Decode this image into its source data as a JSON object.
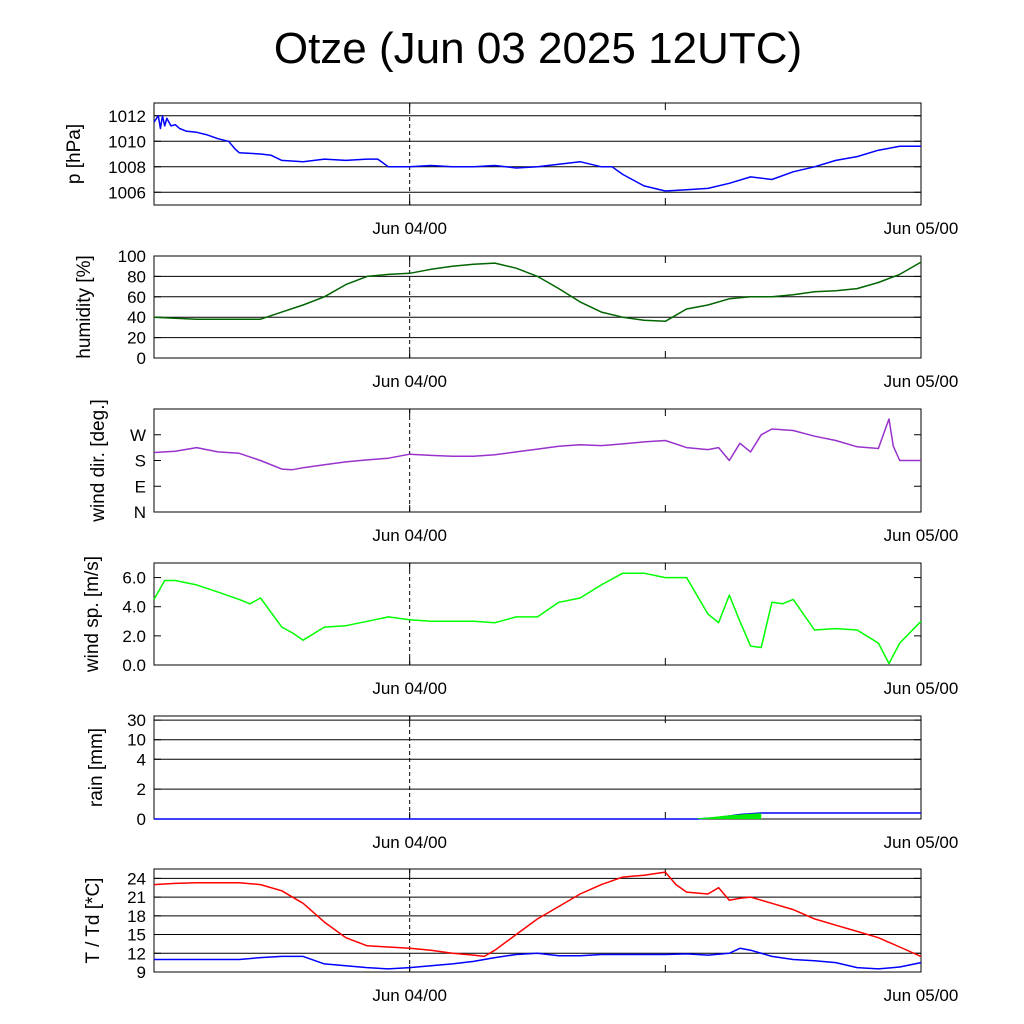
{
  "title": "Otze (Jun 03 2025 12UTC)",
  "x_tick_labels": [
    "Jun 04/00",
    "Jun 05/00"
  ],
  "chart_data": [
    {
      "type": "line",
      "ylabel": "p [hPa]",
      "ylim": [
        1005,
        1013
      ],
      "yticks": [
        {
          "v": 1006,
          "label": "1006"
        },
        {
          "v": 1008,
          "label": "1008"
        },
        {
          "v": 1010,
          "label": "1010"
        },
        {
          "v": 1012,
          "label": "1012"
        }
      ],
      "grid": true,
      "x_range_hours": [
        0,
        36
      ],
      "series": [
        {
          "color": "#0000ff",
          "x": [
            0,
            0.2,
            0.3,
            0.4,
            0.5,
            0.6,
            0.8,
            1,
            1.2,
            1.5,
            2,
            2.5,
            3,
            3.5,
            3.8,
            4,
            5,
            5.5,
            6,
            7,
            8,
            9,
            10,
            10.5,
            11,
            12,
            13,
            14,
            15,
            16,
            17,
            18,
            19,
            20,
            21,
            21.5,
            22,
            23,
            24,
            25,
            26,
            27,
            28,
            29,
            30,
            31,
            32,
            33,
            34,
            35,
            36
          ],
          "y": [
            1011.5,
            1012,
            1011,
            1012,
            1011.2,
            1011.8,
            1011.2,
            1011.3,
            1011.0,
            1010.8,
            1010.7,
            1010.5,
            1010.2,
            1010.0,
            1009.4,
            1009.1,
            1009.0,
            1008.9,
            1008.5,
            1008.4,
            1008.6,
            1008.5,
            1008.6,
            1008.6,
            1008.0,
            1008.0,
            1008.1,
            1008.0,
            1008.0,
            1008.1,
            1007.9,
            1008.0,
            1008.2,
            1008.4,
            1008.0,
            1008.0,
            1007.4,
            1006.5,
            1006.1,
            1006.2,
            1006.3,
            1006.7,
            1007.2,
            1007.0,
            1007.6,
            1008.0,
            1008.5,
            1008.8,
            1009.3,
            1009.6,
            1009.6
          ]
        }
      ]
    },
    {
      "type": "line",
      "ylabel": "humidity [%]",
      "ylim": [
        0,
        100
      ],
      "yticks": [
        {
          "v": 0,
          "label": "0"
        },
        {
          "v": 20,
          "label": "20"
        },
        {
          "v": 40,
          "label": "40"
        },
        {
          "v": 60,
          "label": "60"
        },
        {
          "v": 80,
          "label": "80"
        },
        {
          "v": 100,
          "label": "100"
        }
      ],
      "grid": true,
      "x_range_hours": [
        0,
        36
      ],
      "series": [
        {
          "color": "#006400",
          "x": [
            0,
            1,
            2,
            3,
            4,
            5,
            6,
            7,
            8,
            9,
            10,
            11,
            12,
            13,
            14,
            15,
            16,
            17,
            18,
            19,
            20,
            21,
            22,
            23,
            24,
            25,
            26,
            27,
            28,
            29,
            30,
            31,
            32,
            33,
            34,
            35,
            36
          ],
          "y": [
            40,
            39,
            38,
            38,
            38,
            38,
            45,
            52,
            60,
            72,
            80,
            82,
            83,
            87,
            90,
            92,
            93,
            88,
            80,
            68,
            55,
            45,
            40,
            37,
            36,
            48,
            52,
            58,
            60,
            60,
            62,
            65,
            66,
            68,
            74,
            82,
            94
          ]
        }
      ]
    },
    {
      "type": "line",
      "ylabel": "wind dir. [deg.]",
      "ylim": [
        0,
        360
      ],
      "yticks": [
        {
          "v": 0,
          "label": "N"
        },
        {
          "v": 90,
          "label": "E"
        },
        {
          "v": 180,
          "label": "S"
        },
        {
          "v": 270,
          "label": "W"
        }
      ],
      "grid": false,
      "x_range_hours": [
        0,
        36
      ],
      "series": [
        {
          "color": "#9932cc",
          "x": [
            0,
            1,
            2,
            3,
            4,
            5,
            6,
            6.5,
            7,
            8,
            9,
            10,
            11,
            12,
            13,
            14,
            15,
            16,
            17,
            18,
            19,
            20,
            21,
            22,
            23,
            24,
            25,
            26,
            26.5,
            27,
            27.5,
            28,
            28.5,
            29,
            30,
            31,
            32,
            33,
            34,
            34.3,
            34.5,
            34.7,
            35,
            36
          ],
          "y": [
            208,
            212,
            225,
            210,
            205,
            180,
            150,
            148,
            155,
            165,
            175,
            182,
            188,
            202,
            198,
            195,
            195,
            200,
            210,
            220,
            230,
            235,
            232,
            238,
            245,
            250,
            225,
            218,
            225,
            180,
            240,
            210,
            270,
            290,
            285,
            265,
            250,
            228,
            222,
            285,
            325,
            230,
            180,
            180
          ]
        }
      ]
    },
    {
      "type": "line",
      "ylabel": "wind sp. [m/s]",
      "ylim": [
        0,
        7
      ],
      "yticks": [
        {
          "v": 0,
          "label": "0.0"
        },
        {
          "v": 2,
          "label": "2.0"
        },
        {
          "v": 4,
          "label": "4.0"
        },
        {
          "v": 6,
          "label": "6.0"
        }
      ],
      "grid": false,
      "x_range_hours": [
        0,
        36
      ],
      "series": [
        {
          "color": "#00ff00",
          "x": [
            0,
            0.5,
            1,
            2,
            3,
            4,
            4.5,
            5,
            5.3,
            6,
            6.5,
            7,
            8,
            9,
            10,
            11,
            12,
            13,
            14,
            15,
            16,
            17,
            18,
            19,
            20,
            21,
            22,
            23,
            24,
            25,
            26,
            26.5,
            27,
            27.5,
            28,
            28.5,
            29,
            29.5,
            30,
            31,
            32,
            33,
            34,
            34.5,
            35,
            36
          ],
          "y": [
            4.5,
            5.8,
            5.8,
            5.5,
            5.0,
            4.5,
            4.2,
            4.6,
            4.0,
            2.6,
            2.2,
            1.7,
            2.6,
            2.7,
            3.0,
            3.3,
            3.1,
            3.0,
            3.0,
            3.0,
            2.9,
            3.3,
            3.3,
            4.3,
            4.6,
            5.5,
            6.3,
            6.3,
            6.0,
            6.0,
            3.5,
            2.9,
            4.8,
            3.0,
            1.3,
            1.2,
            4.3,
            4.2,
            4.5,
            2.4,
            2.5,
            2.4,
            1.5,
            0.1,
            1.5,
            3.0
          ]
        }
      ]
    },
    {
      "type": "area",
      "ylabel": "rain [mm]",
      "ylim": [
        0,
        30
      ],
      "yticks": [
        {
          "v": 0,
          "label": "0"
        },
        {
          "v": 2,
          "label": "2"
        },
        {
          "v": 4,
          "label": "4"
        },
        {
          "v": 10,
          "label": "10"
        },
        {
          "v": 30,
          "label": "30"
        }
      ],
      "grid": true,
      "x_range_hours": [
        0,
        36
      ],
      "series": [
        {
          "color": "#0000ff",
          "kind": "line",
          "x": [
            0,
            25.5,
            26.5,
            27.5,
            28.5,
            29,
            36
          ],
          "y": [
            0,
            0,
            0.1,
            0.3,
            0.4,
            0.4,
            0.4
          ]
        },
        {
          "color": "#00ee00",
          "kind": "area",
          "x": [
            25.5,
            26,
            27,
            28,
            28.5,
            28.5,
            25.5
          ],
          "y": [
            0.05,
            0.1,
            0.25,
            0.35,
            0.38,
            0,
            0
          ]
        }
      ]
    },
    {
      "type": "line",
      "ylabel": "T / Td [*C]",
      "ylim": [
        9,
        25.5
      ],
      "yticks": [
        {
          "v": 9,
          "label": "9"
        },
        {
          "v": 12,
          "label": "12"
        },
        {
          "v": 15,
          "label": "15"
        },
        {
          "v": 18,
          "label": "18"
        },
        {
          "v": 21,
          "label": "21"
        },
        {
          "v": 24,
          "label": "24"
        }
      ],
      "grid": true,
      "x_range_hours": [
        0,
        36
      ],
      "series": [
        {
          "color": "#ff0000",
          "x": [
            0,
            1,
            2,
            3,
            4,
            5,
            6,
            7,
            8,
            9,
            10,
            11,
            12,
            13,
            14,
            15,
            15.5,
            16,
            17,
            18,
            19,
            20,
            21,
            22,
            23,
            24,
            24.5,
            25,
            26,
            26.5,
            27,
            27.5,
            28,
            28.5,
            29,
            30,
            31,
            32,
            33,
            34,
            35,
            36
          ],
          "y": [
            23,
            23.2,
            23.3,
            23.3,
            23.3,
            23.0,
            22.0,
            20.0,
            17.0,
            14.5,
            13.2,
            13.0,
            12.8,
            12.5,
            12.0,
            11.7,
            11.5,
            12.5,
            15.0,
            17.5,
            19.5,
            21.5,
            23.0,
            24.2,
            24.5,
            25.0,
            23.0,
            21.8,
            21.5,
            22.5,
            20.5,
            20.8,
            21.0,
            20.5,
            20.0,
            19.0,
            17.5,
            16.5,
            15.5,
            14.5,
            13.0,
            11.5
          ]
        },
        {
          "color": "#0000ff",
          "x": [
            0,
            2,
            4,
            5,
            6,
            7,
            8,
            9,
            10,
            11,
            12,
            13,
            14,
            15,
            16,
            17,
            18,
            19,
            20,
            21,
            22,
            23,
            24,
            25,
            26,
            27,
            27.5,
            28,
            29,
            30,
            31,
            32,
            33,
            34,
            35,
            36
          ],
          "y": [
            11,
            11,
            11,
            11.3,
            11.5,
            11.5,
            10.3,
            10.0,
            9.7,
            9.5,
            9.7,
            10.0,
            10.3,
            10.7,
            11.3,
            11.8,
            12.0,
            11.6,
            11.6,
            11.8,
            11.8,
            11.8,
            11.8,
            11.9,
            11.7,
            12.0,
            12.8,
            12.5,
            11.5,
            11.0,
            10.8,
            10.5,
            9.7,
            9.5,
            9.8,
            10.5
          ]
        }
      ]
    }
  ]
}
